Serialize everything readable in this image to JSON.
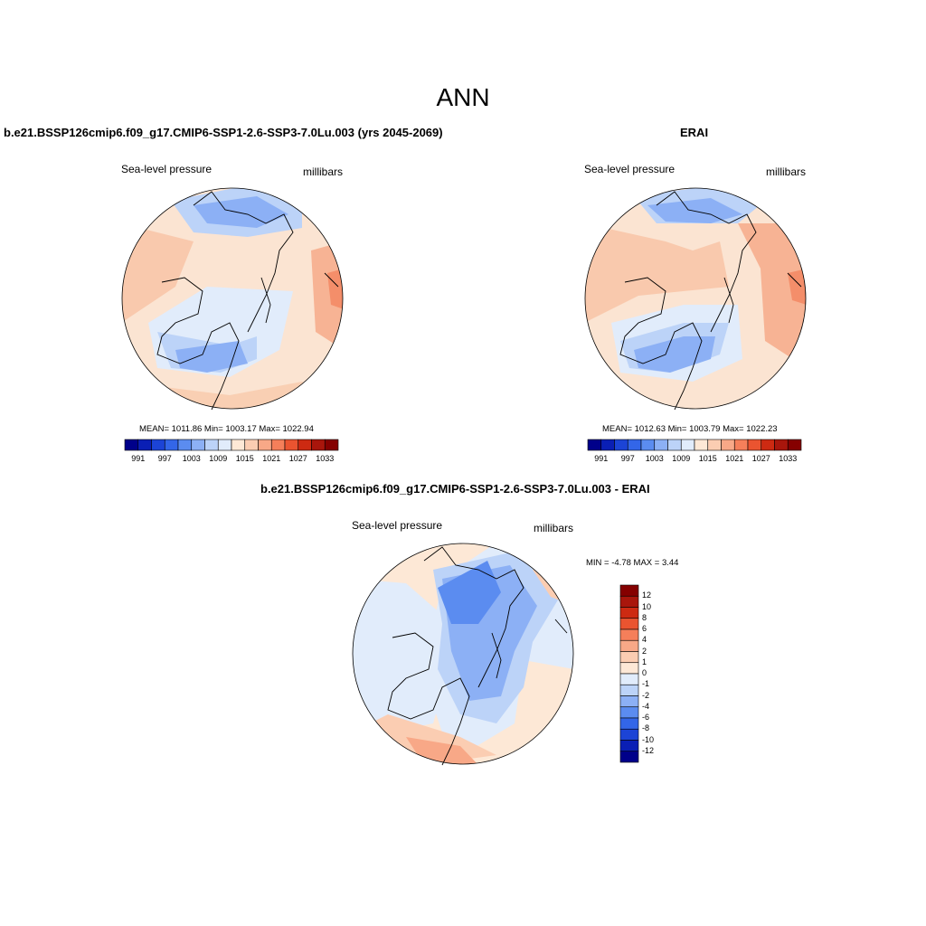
{
  "figure": {
    "main_title": "ANN"
  },
  "panels": {
    "model": {
      "title": "b.e21.BSSP126cmip6.f09_g17.CMIP6-SSP1-2.6-SSP3-7.0Lu.003 (yrs 2045-2069)",
      "variable": "Sea-level pressure",
      "units": "millibars",
      "stats": "MEAN= 1011.86  Min= 1003.17  Max= 1022.94"
    },
    "obs": {
      "title": "ERAI",
      "variable": "Sea-level pressure",
      "units": "millibars",
      "stats": "MEAN= 1012.63  Min= 1003.79  Max= 1022.23"
    },
    "diff": {
      "title": "b.e21.BSSP126cmip6.f09_g17.CMIP6-SSP1-2.6-SSP3-7.0Lu.003 - ERAI",
      "variable": "Sea-level pressure",
      "units": "millibars",
      "stats": "MIN =  -4.78 MAX =   3.44"
    }
  },
  "colorbars": {
    "abs": {
      "ticks": [
        "991",
        "997",
        "1003",
        "1009",
        "1015",
        "1021",
        "1027",
        "1033"
      ],
      "colors": [
        "#00008a",
        "#0a1fb5",
        "#1c44d6",
        "#3366e8",
        "#5b8cf0",
        "#8cb0f5",
        "#bcd3f8",
        "#e1ecfb",
        "#fde8d6",
        "#fbcdb2",
        "#f8a887",
        "#f57f5a",
        "#ea5430",
        "#cd2a12",
        "#a9160c",
        "#850000"
      ]
    },
    "diff": {
      "ticks": [
        "12",
        "10",
        "8",
        "6",
        "4",
        "2",
        "1",
        "0",
        "-1",
        "-2",
        "-4",
        "-6",
        "-8",
        "-10",
        "-12"
      ],
      "colors": [
        "#850000",
        "#a9160c",
        "#cd2a12",
        "#ea5430",
        "#f57f5a",
        "#f8a887",
        "#fbcdb2",
        "#fde8d6",
        "#e1ecfb",
        "#bcd3f8",
        "#8cb0f5",
        "#5b8cf0",
        "#3366e8",
        "#1c44d6",
        "#0a1fb5",
        "#00008a"
      ]
    }
  }
}
